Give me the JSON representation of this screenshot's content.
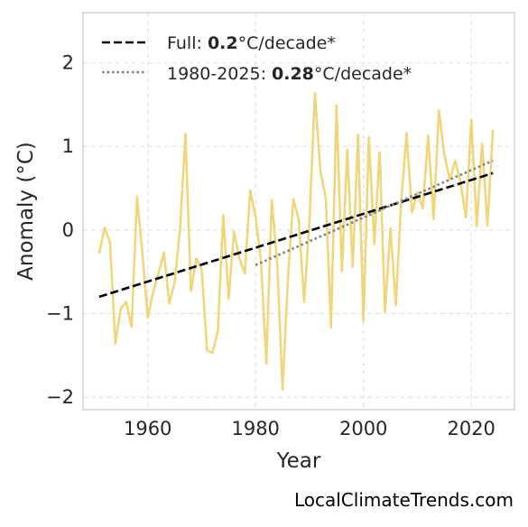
{
  "chart_data": {
    "type": "line",
    "xlabel": "Year",
    "ylabel": "Anomaly (°C)",
    "xlim": [
      1948,
      2028
    ],
    "ylim": [
      -2.15,
      2.6
    ],
    "x_ticks": [
      1960,
      1980,
      2000,
      2020
    ],
    "x_tick_labels": [
      "1960",
      "1980",
      "2000",
      "2020"
    ],
    "y_ticks": [
      -2,
      -1,
      0,
      1,
      2
    ],
    "y_tick_labels": [
      "−2",
      "−1",
      "0",
      "1",
      "2"
    ],
    "grid": true,
    "legend_position": "top-left",
    "series": [
      {
        "style": "line",
        "color": "#f0d67a",
        "x": [
          1951,
          1952,
          1953,
          1954,
          1955,
          1956,
          1957,
          1958,
          1959,
          1960,
          1961,
          1962,
          1963,
          1964,
          1965,
          1966,
          1967,
          1968,
          1969,
          1970,
          1971,
          1972,
          1973,
          1974,
          1975,
          1976,
          1977,
          1978,
          1979,
          1980,
          1981,
          1982,
          1983,
          1984,
          1985,
          1986,
          1987,
          1988,
          1989,
          1990,
          1991,
          1992,
          1993,
          1994,
          1995,
          1996,
          1997,
          1998,
          1999,
          2000,
          2001,
          2002,
          2003,
          2004,
          2005,
          2006,
          2007,
          2008,
          2009,
          2010,
          2011,
          2012,
          2013,
          2014,
          2015,
          2016,
          2017,
          2018,
          2019,
          2020,
          2021,
          2022,
          2023,
          2024
        ],
        "values": [
          -0.28,
          0.03,
          -0.15,
          -1.36,
          -0.94,
          -0.86,
          -1.16,
          0.4,
          -0.28,
          -1.05,
          -0.74,
          -0.52,
          -0.27,
          -0.88,
          -0.62,
          0.03,
          1.15,
          -0.73,
          -0.34,
          -0.48,
          -1.44,
          -1.47,
          -1.21,
          0.18,
          -0.82,
          -0.02,
          -0.34,
          -0.52,
          0.47,
          0.16,
          -0.38,
          -1.6,
          0.36,
          -0.39,
          -1.91,
          -0.58,
          0.37,
          0.12,
          -0.86,
          0.13,
          1.64,
          0.71,
          0.39,
          -1.17,
          1.49,
          -0.49,
          0.96,
          -0.44,
          1.14,
          -1.09,
          1.11,
          -0.17,
          0.93,
          -0.98,
          0.02,
          -0.9,
          0.34,
          1.16,
          0.21,
          0.45,
          0.26,
          1.13,
          0.13,
          1.43,
          0.9,
          0.6,
          0.83,
          0.57,
          0.15,
          1.32,
          0.04,
          1.03,
          0.05,
          1.2
        ]
      },
      {
        "name": "Full: 0.2°C/decade*",
        "style": "dashed",
        "color": "#000000",
        "x": [
          1951,
          2024
        ],
        "values": [
          -0.8,
          0.68
        ]
      },
      {
        "name": "1980-2025: 0.28°C/decade*",
        "style": "dotted",
        "color": "#808080",
        "x": [
          1980,
          2024
        ],
        "values": [
          -0.42,
          0.83
        ]
      }
    ]
  },
  "legend": {
    "full_prefix": "Full: ",
    "full_value": "0.2",
    "full_suffix": "°C/decade*",
    "recent_prefix": "1980-2025: ",
    "recent_value": "0.28",
    "recent_suffix": "°C/decade*"
  },
  "credit": "LocalClimateTrends.com"
}
